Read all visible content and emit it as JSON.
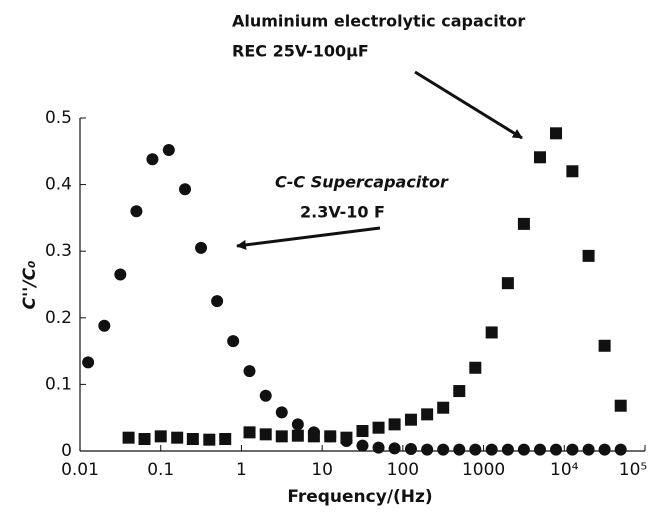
{
  "chart_data": {
    "type": "scatter",
    "xlabel": "Frequency/(Hz)",
    "ylabel": "C''/C₀",
    "xscale": "log",
    "xlim": [
      0.01,
      100000
    ],
    "xticks": [
      0.01,
      0.1,
      1,
      10,
      100,
      1000,
      {
        "value": 10000,
        "label": "10⁴"
      },
      {
        "value": 100000,
        "label": "10⁵"
      }
    ],
    "ylim": [
      0,
      0.5
    ],
    "yticks": [
      0,
      0.1,
      0.2,
      0.3,
      0.4,
      0.5
    ],
    "annotations": [
      {
        "lines": [
          "C-C Supercapacitor",
          "2.3V-10 F"
        ]
      },
      {
        "lines": [
          "Aluminium electrolytic capacitor",
          "REC 25V-100μF"
        ]
      }
    ],
    "series": [
      {
        "marker": "circle",
        "color": "#111111",
        "x": [
          0.0126,
          0.02,
          0.0316,
          0.05,
          0.079,
          0.126,
          0.2,
          0.316,
          0.5,
          0.79,
          1.26,
          2,
          3.16,
          5,
          7.9,
          12.6,
          20,
          31.6,
          50,
          79,
          126,
          200,
          316,
          500,
          790,
          1260,
          2000,
          3160,
          5000,
          7900,
          12600,
          20000,
          31600,
          50000
        ],
        "values": [
          0.133,
          0.188,
          0.265,
          0.36,
          0.438,
          0.452,
          0.393,
          0.305,
          0.225,
          0.165,
          0.12,
          0.083,
          0.058,
          0.04,
          0.028,
          0.022,
          0.015,
          0.008,
          0.005,
          0.004,
          0.003,
          0.002,
          0.002,
          0.002,
          0.002,
          0.002,
          0.002,
          0.002,
          0.002,
          0.002,
          0.002,
          0.002,
          0.002,
          0.002
        ]
      },
      {
        "marker": "square",
        "color": "#111111",
        "x": [
          0.04,
          0.063,
          0.1,
          0.16,
          0.25,
          0.4,
          0.63,
          1.26,
          2,
          3.16,
          5,
          7.9,
          12.6,
          20,
          31.6,
          50,
          79,
          126,
          200,
          316,
          500,
          790,
          1260,
          2000,
          3160,
          5000,
          7900,
          12600,
          20000,
          31600,
          50000
        ],
        "values": [
          0.02,
          0.018,
          0.022,
          0.02,
          0.018,
          0.017,
          0.018,
          0.028,
          0.025,
          0.022,
          0.023,
          0.022,
          0.022,
          0.02,
          0.03,
          0.035,
          0.04,
          0.047,
          0.055,
          0.065,
          0.09,
          0.125,
          0.178,
          0.252,
          0.341,
          0.441,
          0.477,
          0.42,
          0.293,
          0.158,
          0.068
        ]
      }
    ]
  }
}
